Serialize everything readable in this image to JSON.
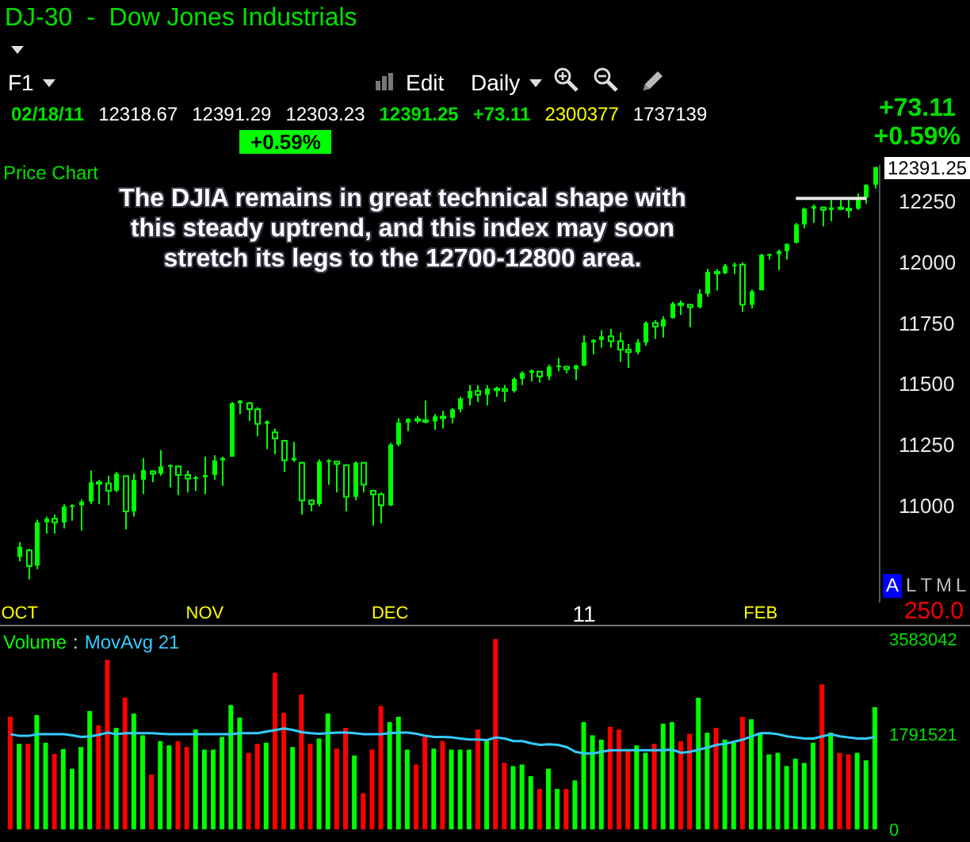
{
  "chart_data": [
    {
      "type": "candlestick",
      "title": "DJ-30  -  Dow Jones Industrials",
      "subtitle": "Price Chart",
      "color": "#00ff00",
      "categories": [
        null,
        "OCT",
        null,
        null,
        null,
        null,
        null,
        null,
        null,
        null,
        null,
        null,
        null,
        null,
        null,
        null,
        null,
        null,
        null,
        null,
        null,
        null,
        "NOV",
        null,
        null,
        null,
        null,
        null,
        null,
        null,
        null,
        null,
        null,
        null,
        null,
        null,
        null,
        null,
        null,
        null,
        null,
        null,
        null,
        "DEC",
        null,
        null,
        null,
        null,
        null,
        null,
        null,
        null,
        null,
        null,
        null,
        null,
        null,
        null,
        null,
        null,
        null,
        null,
        null,
        null,
        null,
        "11",
        null,
        null,
        null,
        null,
        null,
        null,
        null,
        null,
        null,
        null,
        null,
        null,
        null,
        null,
        null,
        null,
        null,
        null,
        null,
        "FEB",
        null,
        null,
        null,
        null,
        null,
        null,
        null,
        null,
        null,
        null,
        null,
        null,
        null
      ],
      "ohlc": [
        null,
        [
          10788,
          10849,
          10769,
          10830
        ],
        [
          10815,
          10821,
          10695,
          10750
        ],
        [
          10752,
          10941,
          10737,
          10930
        ],
        [
          10930,
          10954,
          10884,
          10945
        ],
        [
          10945,
          10962,
          10884,
          10930
        ],
        [
          10930,
          11004,
          10905,
          10995
        ],
        [
          10995,
          11004,
          10937,
          11000
        ],
        [
          11000,
          11025,
          10895,
          11015
        ],
        [
          11015,
          11143,
          11004,
          11095
        ],
        [
          11095,
          11105,
          11004,
          11090
        ],
        [
          11090,
          11122,
          11000,
          11060
        ],
        [
          11060,
          11137,
          11053,
          11130
        ],
        [
          11120,
          11122,
          10901,
          10975
        ],
        [
          10975,
          11130,
          10954,
          11105
        ],
        [
          11105,
          11194,
          11046,
          11145
        ],
        [
          11140,
          11143,
          11095,
          11130
        ],
        [
          11130,
          11227,
          11122,
          11160
        ],
        [
          11160,
          11168,
          11074,
          11165
        ],
        [
          11160,
          11164,
          11042,
          11125
        ],
        [
          11125,
          11143,
          11053,
          11110
        ],
        [
          11110,
          11122,
          11059,
          11115
        ],
        [
          11115,
          11200,
          11046,
          11125
        ],
        [
          11125,
          11206,
          11105,
          11185
        ],
        [
          11185,
          11200,
          11080,
          11195
        ],
        [
          11200,
          11425,
          11200,
          11420
        ],
        [
          11420,
          11433,
          11375,
          11430
        ],
        [
          11420,
          11425,
          11347,
          11395
        ],
        [
          11395,
          11404,
          11284,
          11335
        ],
        [
          11335,
          11349,
          11231,
          11345
        ],
        [
          11300,
          11316,
          11210,
          11275
        ],
        [
          11265,
          11269,
          11137,
          11185
        ],
        [
          11185,
          11261,
          11179,
          11195
        ],
        [
          11175,
          11179,
          10962,
          11020
        ],
        [
          11020,
          11025,
          10975,
          11005
        ],
        [
          11005,
          11189,
          10996,
          11180
        ],
        [
          11180,
          11189,
          11084,
          11185
        ],
        [
          11180,
          11181,
          11053,
          11170
        ],
        [
          11165,
          11168,
          10975,
          11035
        ],
        [
          11035,
          11181,
          11021,
          11175
        ],
        [
          11175,
          11175,
          11053,
          11085
        ],
        [
          11060,
          11063,
          10916,
          11045
        ],
        [
          11045,
          11053,
          10926,
          11000
        ],
        [
          11000,
          11257,
          10996,
          11250
        ],
        [
          11250,
          11358,
          11242,
          11340
        ],
        [
          11340,
          11358,
          11305,
          11355
        ],
        [
          11355,
          11368,
          11337,
          11350
        ],
        [
          11350,
          11431,
          11337,
          11345
        ],
        [
          11345,
          11375,
          11311,
          11365
        ],
        [
          11365,
          11389,
          11316,
          11360
        ],
        [
          11360,
          11400,
          11337,
          11395
        ],
        [
          11395,
          11446,
          11383,
          11440
        ],
        [
          11440,
          11494,
          11410,
          11470
        ],
        [
          11470,
          11494,
          11425,
          11455
        ],
        [
          11455,
          11494,
          11410,
          11480
        ],
        [
          11480,
          11488,
          11446,
          11478
        ],
        [
          11478,
          11494,
          11425,
          11470
        ],
        [
          11470,
          11526,
          11463,
          11520
        ],
        [
          11520,
          11551,
          11494,
          11545
        ],
        [
          11545,
          11558,
          11509,
          11555
        ],
        [
          11550,
          11551,
          11505,
          11530
        ],
        [
          11530,
          11579,
          11515,
          11570
        ],
        [
          11570,
          11606,
          11551,
          11575
        ],
        [
          11570,
          11572,
          11543,
          11560
        ],
        [
          11560,
          11579,
          11515,
          11575
        ],
        [
          11575,
          11699,
          11572,
          11670
        ],
        [
          11670,
          11684,
          11621,
          11680
        ],
        [
          11680,
          11720,
          11648,
          11695
        ],
        [
          11695,
          11726,
          11648,
          11675
        ],
        [
          11675,
          11711,
          11589,
          11640
        ],
        [
          11640,
          11663,
          11564,
          11630
        ],
        [
          11630,
          11684,
          11621,
          11670
        ],
        [
          11670,
          11757,
          11656,
          11750
        ],
        [
          11750,
          11762,
          11684,
          11735
        ],
        [
          11735,
          11778,
          11690,
          11765
        ],
        [
          11770,
          11837,
          11768,
          11830
        ],
        [
          11830,
          11842,
          11783,
          11825
        ],
        [
          11825,
          11825,
          11732,
          11815
        ],
        [
          11815,
          11888,
          11810,
          11870
        ],
        [
          11870,
          11972,
          11858,
          11960
        ],
        [
          11960,
          11972,
          11884,
          11955
        ],
        [
          11955,
          11993,
          11951,
          11985
        ],
        [
          11985,
          11999,
          11951,
          11990
        ],
        [
          11990,
          11999,
          11795,
          11825
        ],
        [
          11825,
          11888,
          11810,
          11880
        ],
        [
          11885,
          12035,
          11884,
          12030
        ],
        [
          12030,
          12035,
          12010,
          12033
        ],
        [
          12033,
          12052,
          11968,
          12045
        ],
        [
          12045,
          12077,
          12010,
          12075
        ],
        [
          12080,
          12161,
          12077,
          12155
        ],
        [
          12155,
          12225,
          12140,
          12220
        ],
        [
          12220,
          12237,
          12161,
          12230
        ],
        [
          12225,
          12225,
          12147,
          12215
        ],
        [
          12215,
          12258,
          12168,
          12225
        ],
        [
          12225,
          12262,
          12216,
          12220
        ],
        [
          12220,
          12258,
          12182,
          12215
        ],
        [
          12220,
          12283,
          12216,
          12265
        ],
        [
          12265,
          12320,
          12241,
          12318
        ],
        [
          12318.67,
          12391.29,
          12303.23,
          12391.25
        ]
      ],
      "series": [
        {
          "type": "line",
          "color": "#e8e8e8",
          "values": [
            null,
            null,
            null,
            null,
            null,
            null,
            null,
            null,
            null,
            null,
            null,
            null,
            null,
            null,
            null,
            null,
            null,
            null,
            null,
            null,
            null,
            null,
            null,
            null,
            null,
            null,
            null,
            null,
            null,
            null,
            null,
            null,
            null,
            null,
            null,
            null,
            null,
            null,
            null,
            null,
            null,
            null,
            null,
            null,
            null,
            null,
            null,
            null,
            null,
            null,
            null,
            null,
            null,
            null,
            null,
            null,
            null,
            null,
            null,
            null,
            null,
            null,
            null,
            null,
            null,
            null,
            null,
            null,
            null,
            null,
            null,
            null,
            null,
            null,
            null,
            null,
            null,
            null,
            null,
            null,
            null,
            null,
            null,
            null,
            null,
            null,
            null,
            null,
            null,
            12262,
            12262,
            12262,
            12262,
            12262,
            12262,
            12262,
            12262,
            12262,
            null
          ]
        }
      ],
      "ylim": [
        10600,
        12400
      ],
      "yticks": [
        11000,
        11250,
        11500,
        11750,
        12000,
        12250
      ],
      "annotations": [
        "F1",
        "Edit",
        "Daily",
        "02/18/11 12318.67 12391.29 12303.23 12391.25 +73.11 2300377 1737139",
        "+0.59%",
        "+73.11",
        "+0.59%",
        "The DJIA remains in great technical shape with\nthis steady uptrend, and this index may soon\nstretch its legs to the 12700-12800 area.",
        "12391.25",
        "A L T M L",
        "250.0"
      ]
    },
    {
      "type": "bar",
      "categories": [
        null,
        null,
        null,
        null,
        null,
        null,
        null,
        null,
        null,
        null,
        null,
        null,
        null,
        null,
        null,
        null,
        null,
        null,
        null,
        null,
        null,
        null,
        null,
        null,
        null,
        null,
        null,
        null,
        null,
        null,
        null,
        null,
        null,
        null,
        null,
        null,
        null,
        null,
        null,
        null,
        null,
        null,
        null,
        null,
        null,
        null,
        null,
        null,
        null,
        null,
        null,
        null,
        null,
        null,
        null,
        null,
        null,
        null,
        null,
        null,
        null,
        null,
        null,
        null,
        null,
        null,
        null,
        null,
        null,
        null,
        null,
        null,
        null,
        null,
        null,
        null,
        null,
        null,
        null,
        null,
        null,
        null,
        null,
        null,
        null,
        null,
        null,
        null,
        null,
        null,
        null,
        null,
        null,
        null,
        null,
        null,
        null,
        null,
        null
      ],
      "series": [
        {
          "name": "Volume",
          "color": "#00ff00",
          "colors": [
            "#ff0000",
            "#00ff00",
            "#ff0000",
            "#00ff00",
            "#00ff00",
            "#ff0000",
            "#00ff00",
            "#00ff00",
            "#00ff00",
            "#00ff00",
            "#ff0000",
            "#ff0000",
            "#00ff00",
            "#ff0000",
            "#00ff00",
            "#00ff00",
            "#ff0000",
            "#00ff00",
            "#00ff00",
            "#ff0000",
            "#ff0000",
            "#00ff00",
            "#00ff00",
            "#00ff00",
            "#00ff00",
            "#00ff00",
            "#00ff00",
            "#ff0000",
            "#ff0000",
            "#00ff00",
            "#ff0000",
            "#ff0000",
            "#00ff00",
            "#ff0000",
            "#ff0000",
            "#00ff00",
            "#00ff00",
            "#ff0000",
            "#ff0000",
            "#00ff00",
            "#ff0000",
            "#ff0000",
            "#ff0000",
            "#00ff00",
            "#00ff00",
            "#00ff00",
            "#ff0000",
            "#ff0000",
            "#00ff00",
            "#ff0000",
            "#00ff00",
            "#00ff00",
            "#00ff00",
            "#ff0000",
            "#00ff00",
            "#ff0000",
            "#ff0000",
            "#00ff00",
            "#00ff00",
            "#00ff00",
            "#ff0000",
            "#00ff00",
            "#00ff00",
            "#ff0000",
            "#00ff00",
            "#00ff00",
            "#00ff00",
            "#00ff00",
            "#ff0000",
            "#ff0000",
            "#ff0000",
            "#00ff00",
            "#00ff00",
            "#ff0000",
            "#00ff00",
            "#00ff00",
            "#ff0000",
            "#ff0000",
            "#00ff00",
            "#00ff00",
            "#ff0000",
            "#00ff00",
            "#00ff00",
            "#ff0000",
            "#00ff00",
            "#00ff00",
            "#00ff00",
            "#00ff00",
            "#00ff00",
            "#00ff00",
            "#00ff00",
            "#00ff00",
            "#ff0000",
            "#00ff00",
            "#ff0000",
            "#ff0000",
            "#00ff00",
            "#00ff00",
            "#00ff00"
          ],
          "values": [
            2120000,
            1610000,
            1610000,
            2150000,
            1630000,
            1420000,
            1510000,
            1140000,
            1550000,
            2230000,
            1960000,
            3190000,
            1910000,
            2480000,
            2180000,
            1770000,
            1030000,
            1660000,
            1580000,
            1660000,
            1550000,
            1880000,
            1500000,
            1500000,
            1740000,
            2340000,
            2100000,
            1440000,
            1610000,
            1630000,
            2950000,
            2190000,
            1550000,
            2540000,
            1610000,
            1710000,
            2180000,
            1520000,
            1910000,
            1390000,
            680000,
            1500000,
            2320000,
            2020000,
            2120000,
            1500000,
            1220000,
            1740000,
            1520000,
            1660000,
            1500000,
            1500000,
            1500000,
            1880000,
            1660000,
            3583042,
            1250000,
            1190000,
            1220000,
            1000000,
            760000,
            1140000,
            760000,
            760000,
            920000,
            2020000,
            1770000,
            1690000,
            1930000,
            1880000,
            1500000,
            1580000,
            1440000,
            1610000,
            1990000,
            2020000,
            1660000,
            1800000,
            2480000,
            1820000,
            1910000,
            1690000,
            1630000,
            2120000,
            2070000,
            1820000,
            1410000,
            1440000,
            1190000,
            1330000,
            1250000,
            1630000,
            2730000,
            1820000,
            1440000,
            1410000,
            1440000,
            1300000,
            2300377
          ]
        },
        {
          "name": "MovAvg 21",
          "type": "line",
          "color": "#33ccff",
          "values": [
            1790000,
            1760000,
            1760000,
            1790000,
            1790000,
            1790000,
            1790000,
            1770000,
            1740000,
            1750000,
            1780000,
            1820000,
            1790000,
            1810000,
            1810000,
            1810000,
            1810000,
            1800000,
            1790000,
            1790000,
            1790000,
            1790000,
            1790000,
            1790000,
            1790000,
            1790000,
            1810000,
            1810000,
            1810000,
            1840000,
            1870000,
            1900000,
            1870000,
            1830000,
            1810000,
            1800000,
            1810000,
            1820000,
            1820000,
            1810000,
            1790000,
            1790000,
            1790000,
            1810000,
            1820000,
            1820000,
            1800000,
            1760000,
            1740000,
            1740000,
            1730000,
            1710000,
            1690000,
            1690000,
            1680000,
            1730000,
            1710000,
            1660000,
            1660000,
            1620000,
            1590000,
            1600000,
            1590000,
            1550000,
            1460000,
            1430000,
            1430000,
            1460000,
            1490000,
            1490000,
            1490000,
            1490000,
            1490000,
            1490000,
            1490000,
            1500000,
            1440000,
            1460000,
            1500000,
            1540000,
            1590000,
            1610000,
            1650000,
            1690000,
            1750000,
            1810000,
            1810000,
            1790000,
            1750000,
            1730000,
            1710000,
            1710000,
            1750000,
            1790000,
            1750000,
            1730000,
            1710000,
            1710000,
            1737139
          ]
        }
      ],
      "ylim": [
        0,
        3583042
      ],
      "yticks": [
        0,
        1791521,
        3583042
      ],
      "legend": "top left",
      "tick_labels": "y",
      "annotations": [
        ":"
      ]
    }
  ]
}
